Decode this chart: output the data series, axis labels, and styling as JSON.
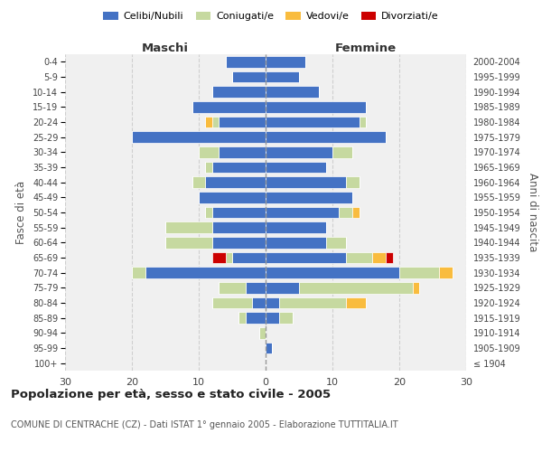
{
  "age_groups": [
    "100+",
    "95-99",
    "90-94",
    "85-89",
    "80-84",
    "75-79",
    "70-74",
    "65-69",
    "60-64",
    "55-59",
    "50-54",
    "45-49",
    "40-44",
    "35-39",
    "30-34",
    "25-29",
    "20-24",
    "15-19",
    "10-14",
    "5-9",
    "0-4"
  ],
  "birth_years": [
    "≤ 1904",
    "1905-1909",
    "1910-1914",
    "1915-1919",
    "1920-1924",
    "1925-1929",
    "1930-1934",
    "1935-1939",
    "1940-1944",
    "1945-1949",
    "1950-1954",
    "1955-1959",
    "1960-1964",
    "1965-1969",
    "1970-1974",
    "1975-1979",
    "1980-1984",
    "1985-1989",
    "1990-1994",
    "1995-1999",
    "2000-2004"
  ],
  "males": {
    "celibi": [
      0,
      0,
      0,
      3,
      2,
      3,
      18,
      5,
      8,
      8,
      8,
      10,
      9,
      8,
      7,
      20,
      7,
      11,
      8,
      5,
      6
    ],
    "coniugati": [
      0,
      0,
      1,
      1,
      6,
      4,
      2,
      1,
      7,
      7,
      1,
      0,
      2,
      1,
      3,
      0,
      1,
      0,
      0,
      0,
      0
    ],
    "vedovi": [
      0,
      0,
      0,
      0,
      0,
      0,
      0,
      0,
      0,
      0,
      0,
      0,
      0,
      0,
      0,
      0,
      1,
      0,
      0,
      0,
      0
    ],
    "divorziati": [
      0,
      0,
      0,
      0,
      0,
      0,
      0,
      2,
      0,
      0,
      0,
      0,
      0,
      0,
      0,
      0,
      0,
      0,
      0,
      0,
      0
    ]
  },
  "females": {
    "celibi": [
      0,
      1,
      0,
      2,
      2,
      5,
      20,
      12,
      9,
      9,
      11,
      13,
      12,
      9,
      10,
      18,
      14,
      15,
      8,
      5,
      6
    ],
    "coniugati": [
      0,
      0,
      0,
      2,
      10,
      17,
      6,
      4,
      3,
      0,
      2,
      0,
      2,
      0,
      3,
      0,
      1,
      0,
      0,
      0,
      0
    ],
    "vedovi": [
      0,
      0,
      0,
      0,
      3,
      1,
      2,
      2,
      0,
      0,
      1,
      0,
      0,
      0,
      0,
      0,
      0,
      0,
      0,
      0,
      0
    ],
    "divorziati": [
      0,
      0,
      0,
      0,
      0,
      0,
      0,
      1,
      0,
      0,
      0,
      0,
      0,
      0,
      0,
      0,
      0,
      0,
      0,
      0,
      0
    ]
  },
  "colors": {
    "celibi": "#4472C4",
    "coniugati": "#C6D9A0",
    "vedovi": "#F9BC3E",
    "divorziati": "#CC0000"
  },
  "legend_labels": [
    "Celibi/Nubili",
    "Coniugati/e",
    "Vedovi/e",
    "Divorziati/e"
  ],
  "xlim": 30,
  "title": "Popolazione per età, sesso e stato civile - 2005",
  "subtitle": "COMUNE DI CENTRACHE (CZ) - Dati ISTAT 1° gennaio 2005 - Elaborazione TUTTITALIA.IT",
  "ylabel_left": "Fasce di età",
  "ylabel_right": "Anni di nascita",
  "xlabel_maschi": "Maschi",
  "xlabel_femmine": "Femmine",
  "bg_color": "#ffffff",
  "plot_bg": "#f0f0f0",
  "grid_color": "#cccccc"
}
